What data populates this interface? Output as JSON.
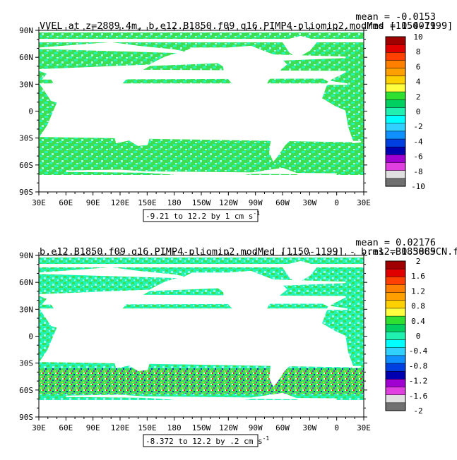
{
  "panels": [
    {
      "title": "VVEL at z=2889.4m, b.e12.B1850.f09_g16.PIMP4-pliomip2.modMed [1150-1199]",
      "mean_label": "mean = -0.0153",
      "rms_label": "rms = 0.4079",
      "range_label": "-9.21 to 12.2 by 1 cm s",
      "range_exponent": "-1",
      "lat_labels": [
        "90N",
        "60N",
        "30N",
        "0",
        "30S",
        "60S",
        "90S"
      ],
      "lon_labels": [
        "30E",
        "60E",
        "90E",
        "120E",
        "150E",
        "180",
        "150W",
        "120W",
        "90W",
        "60W",
        "30W",
        "0",
        "30E"
      ],
      "colorbar": {
        "labels": [
          "10",
          "8",
          "6",
          "4",
          "2",
          "0",
          "-2",
          "-4",
          "-6",
          "-8",
          "-10"
        ],
        "colors": [
          "#a00000",
          "#e00000",
          "#ff4000",
          "#ff8000",
          "#ffa000",
          "#ffd000",
          "#ffff40",
          "#30e030",
          "#00d060",
          "#20f0b0",
          "#00ffff",
          "#30d0ff",
          "#1090ff",
          "#0040e0",
          "#0000b0",
          "#a000d0",
          "#e040e0",
          "#e0e0e0",
          "#707070"
        ]
      }
    },
    {
      "title": "b.e12.B1850.f09_g16.PIMP4-pliomip2.modMed [1150-1199] - b.e12.B1850C5CN.f",
      "mean_label": "mean = 0.02176",
      "rms_label": "rms = 0.3889",
      "range_label": "-8.372 to 12.2 by .2 cm s",
      "range_exponent": "-1",
      "lat_labels": [
        "90N",
        "60N",
        "30N",
        "0",
        "30S",
        "60S",
        "90S"
      ],
      "lon_labels": [
        "30E",
        "60E",
        "90E",
        "120E",
        "150E",
        "180",
        "150W",
        "120W",
        "90W",
        "60W",
        "30W",
        "0",
        "30E"
      ],
      "colorbar": {
        "labels": [
          "2",
          "1.6",
          "1.2",
          "0.8",
          "0.4",
          "0",
          "-0.4",
          "-0.8",
          "-1.2",
          "-1.6",
          "-2"
        ],
        "colors": [
          "#a00000",
          "#e00000",
          "#ff4000",
          "#ff8000",
          "#ffa000",
          "#ffd000",
          "#ffff40",
          "#30e030",
          "#00d060",
          "#20f0b0",
          "#00ffff",
          "#30d0ff",
          "#1090ff",
          "#0040e0",
          "#0000b0",
          "#a000d0",
          "#e040e0",
          "#e0e0e0",
          "#707070"
        ]
      }
    }
  ],
  "ocean_colors": {
    "green": "#3dde52",
    "cyan": "#20f5b5",
    "light_cyan": "#9ff5e8"
  }
}
